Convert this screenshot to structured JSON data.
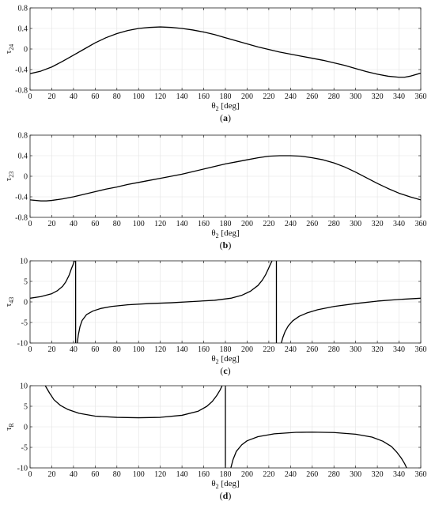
{
  "chart_data": [
    {
      "type": "line",
      "ylabel": "τ",
      "ylabel_sub": "24",
      "xlabel": "θ",
      "xlabel_sub": "2",
      "xlabel_unit": " [deg]",
      "caption": "a",
      "xlim": [
        0,
        360
      ],
      "ylim": [
        -0.8,
        0.8
      ],
      "xticks": [
        0,
        20,
        40,
        60,
        80,
        100,
        120,
        140,
        160,
        180,
        200,
        220,
        240,
        260,
        280,
        300,
        320,
        340,
        360
      ],
      "yticks": [
        -0.8,
        -0.4,
        0,
        0.4,
        0.8
      ],
      "ytick_labels": [
        "-0.8",
        "-0.4",
        "0",
        "0.4",
        "0.8"
      ],
      "grid": true,
      "series": [
        {
          "x": [
            0,
            10,
            20,
            30,
            40,
            50,
            60,
            70,
            80,
            90,
            100,
            110,
            120,
            130,
            140,
            150,
            160,
            170,
            180,
            190,
            200,
            210,
            220,
            230,
            240,
            250,
            260,
            270,
            280,
            290,
            300,
            310,
            320,
            330,
            340,
            345,
            350,
            360
          ],
          "y": [
            -0.48,
            -0.43,
            -0.35,
            -0.24,
            -0.12,
            0.0,
            0.12,
            0.22,
            0.3,
            0.36,
            0.4,
            0.42,
            0.43,
            0.42,
            0.4,
            0.37,
            0.33,
            0.28,
            0.22,
            0.16,
            0.1,
            0.04,
            -0.01,
            -0.06,
            -0.1,
            -0.14,
            -0.18,
            -0.22,
            -0.27,
            -0.32,
            -0.38,
            -0.44,
            -0.49,
            -0.53,
            -0.55,
            -0.55,
            -0.53,
            -0.47
          ]
        }
      ]
    },
    {
      "type": "line",
      "ylabel": "τ",
      "ylabel_sub": "23",
      "xlabel": "θ",
      "xlabel_sub": "2",
      "xlabel_unit": " [deg]",
      "caption": "b",
      "xlim": [
        0,
        360
      ],
      "ylim": [
        -0.8,
        0.8
      ],
      "xticks": [
        0,
        20,
        40,
        60,
        80,
        100,
        120,
        140,
        160,
        180,
        200,
        220,
        240,
        260,
        280,
        300,
        320,
        340,
        360
      ],
      "yticks": [
        -0.8,
        -0.4,
        0,
        0.4,
        0.8
      ],
      "ytick_labels": [
        "-0.8",
        "-0.4",
        "0",
        "0.4",
        "0.8"
      ],
      "grid": true,
      "series": [
        {
          "x": [
            0,
            10,
            15,
            20,
            30,
            40,
            50,
            60,
            70,
            80,
            90,
            100,
            110,
            120,
            130,
            140,
            150,
            160,
            170,
            180,
            190,
            200,
            210,
            220,
            230,
            240,
            250,
            260,
            270,
            280,
            290,
            300,
            310,
            320,
            330,
            340,
            350,
            360
          ],
          "y": [
            -0.46,
            -0.48,
            -0.48,
            -0.47,
            -0.44,
            -0.4,
            -0.35,
            -0.3,
            -0.25,
            -0.21,
            -0.16,
            -0.12,
            -0.08,
            -0.04,
            0.0,
            0.04,
            0.09,
            0.14,
            0.19,
            0.24,
            0.28,
            0.32,
            0.36,
            0.39,
            0.4,
            0.4,
            0.39,
            0.36,
            0.32,
            0.26,
            0.18,
            0.08,
            -0.03,
            -0.14,
            -0.24,
            -0.33,
            -0.4,
            -0.46
          ]
        }
      ]
    },
    {
      "type": "line",
      "ylabel": "τ",
      "ylabel_sub": "43",
      "xlabel": "θ",
      "xlabel_sub": "2",
      "xlabel_unit": " [deg]",
      "caption": "c",
      "xlim": [
        0,
        360
      ],
      "ylim": [
        -10,
        10
      ],
      "xticks": [
        0,
        20,
        40,
        60,
        80,
        100,
        120,
        140,
        160,
        180,
        200,
        220,
        240,
        260,
        280,
        300,
        320,
        340,
        360
      ],
      "yticks": [
        -10,
        -5,
        0,
        5,
        10
      ],
      "ytick_labels": [
        "-10",
        "-5",
        "0",
        "5",
        "10"
      ],
      "grid": true,
      "asymptotes": [
        42,
        227
      ],
      "series": [
        {
          "x": [
            0,
            10,
            20,
            25,
            30,
            33,
            36,
            38,
            39.5,
            40.5,
            41.2
          ],
          "y": [
            0.9,
            1.3,
            2.0,
            2.7,
            3.8,
            4.9,
            6.5,
            8.0,
            9.0,
            9.7,
            10
          ]
        },
        {
          "x": [
            43.5,
            44.5,
            46,
            48,
            52,
            58,
            65,
            75,
            90,
            110,
            130,
            150,
            170,
            185,
            195,
            203,
            210,
            214,
            217,
            219.5,
            221.5,
            223
          ],
          "y": [
            -10,
            -8.0,
            -6.0,
            -4.5,
            -3.1,
            -2.2,
            -1.6,
            -1.1,
            -0.7,
            -0.4,
            -0.2,
            0.1,
            0.4,
            0.9,
            1.6,
            2.6,
            4.0,
            5.3,
            6.6,
            8.0,
            9.2,
            10
          ]
        },
        {
          "x": [
            231.5,
            233,
            235,
            238,
            242,
            248,
            255,
            265,
            280,
            300,
            320,
            340,
            360
          ],
          "y": [
            -10,
            -8.6,
            -7.2,
            -5.8,
            -4.6,
            -3.5,
            -2.7,
            -1.9,
            -1.1,
            -0.4,
            0.2,
            0.6,
            0.9
          ]
        }
      ]
    },
    {
      "type": "line",
      "ylabel": "τ",
      "ylabel_sub": "R",
      "xlabel": "θ",
      "xlabel_sub": "2",
      "xlabel_unit": " [deg]",
      "caption": "d",
      "xlim": [
        0,
        360
      ],
      "ylim": [
        -10,
        10
      ],
      "xticks": [
        0,
        20,
        40,
        60,
        80,
        100,
        120,
        140,
        160,
        180,
        200,
        220,
        240,
        260,
        280,
        300,
        320,
        340,
        360
      ],
      "yticks": [
        -10,
        -5,
        0,
        5,
        10
      ],
      "ytick_labels": [
        "-10",
        "-5",
        "0",
        "5",
        "10"
      ],
      "grid": true,
      "asymptotes": [
        180
      ],
      "series": [
        {
          "x": [
            14,
            18,
            22,
            28,
            35,
            45,
            60,
            80,
            100,
            120,
            140,
            155,
            163,
            168,
            172,
            175,
            177
          ],
          "y": [
            10,
            8.2,
            6.6,
            5.2,
            4.2,
            3.3,
            2.6,
            2.3,
            2.2,
            2.3,
            2.8,
            3.8,
            5.0,
            6.2,
            7.6,
            8.9,
            10
          ]
        },
        {
          "x": [
            185,
            187,
            190,
            195,
            200,
            210,
            225,
            245,
            260,
            280,
            300,
            315,
            325,
            333,
            338,
            342,
            345,
            347
          ],
          "y": [
            -10,
            -8.0,
            -6.0,
            -4.4,
            -3.4,
            -2.4,
            -1.7,
            -1.35,
            -1.3,
            -1.4,
            -1.8,
            -2.5,
            -3.5,
            -4.8,
            -6.2,
            -7.6,
            -8.9,
            -10
          ]
        }
      ]
    }
  ]
}
